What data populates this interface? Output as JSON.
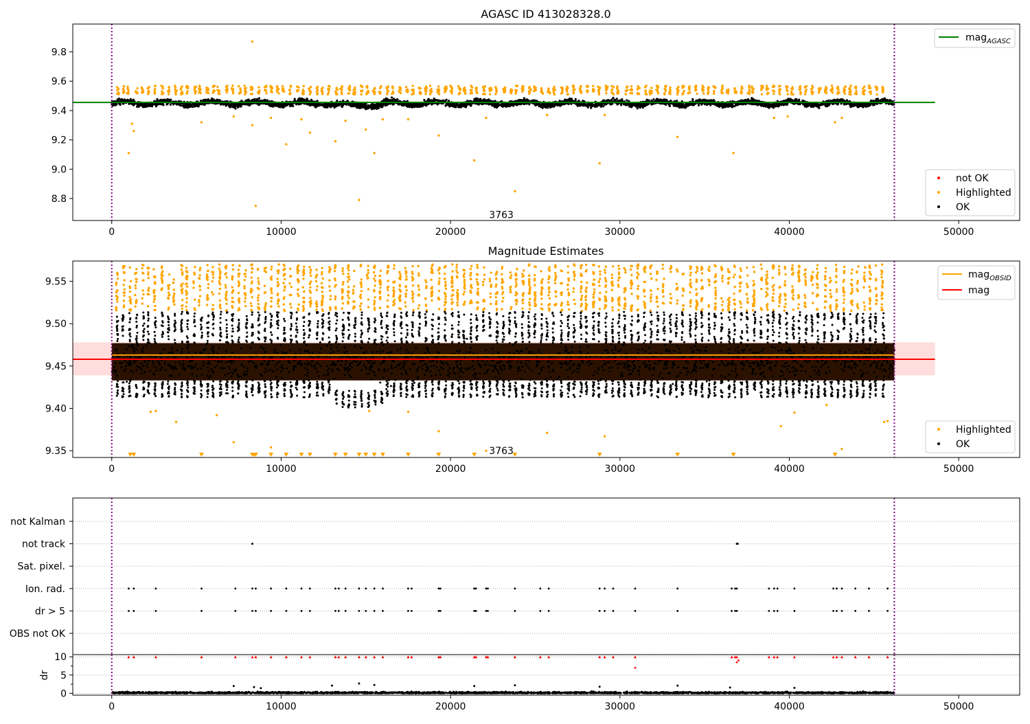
{
  "chart_data": [
    {
      "type": "scatter",
      "title": "AGASC ID 413028328.0",
      "xlim": [
        -2300,
        53600
      ],
      "ylim": [
        8.65,
        9.99
      ],
      "xticks": [
        0,
        10000,
        20000,
        30000,
        40000,
        50000
      ],
      "yticks": [
        8.8,
        9.0,
        9.2,
        9.4,
        9.6,
        9.8
      ],
      "vlines": [
        0,
        46200
      ],
      "hline": {
        "name": "mag_AGASC",
        "value": 9.455,
        "x_range": [
          -2300,
          48600
        ],
        "color": "#008000"
      },
      "annotation": {
        "text": "3763",
        "x": 23000,
        "y": 8.69
      },
      "ok_band": {
        "x_range": [
          0,
          46200
        ],
        "center": 9.45,
        "spread": 0.04
      },
      "highlight_band": {
        "center": 9.54,
        "spread": 0.03
      },
      "highlighted_outliers": [
        [
          1000,
          9.11
        ],
        [
          1200,
          9.31
        ],
        [
          1300,
          9.26
        ],
        [
          5300,
          9.32
        ],
        [
          7200,
          9.36
        ],
        [
          8300,
          9.3
        ],
        [
          8300,
          9.87
        ],
        [
          8500,
          8.75
        ],
        [
          9400,
          9.35
        ],
        [
          10300,
          9.17
        ],
        [
          11200,
          9.34
        ],
        [
          11700,
          9.25
        ],
        [
          13200,
          9.19
        ],
        [
          13800,
          9.33
        ],
        [
          14600,
          8.79
        ],
        [
          15000,
          9.27
        ],
        [
          15500,
          9.11
        ],
        [
          16000,
          9.34
        ],
        [
          17500,
          9.34
        ],
        [
          19300,
          9.23
        ],
        [
          21400,
          9.06
        ],
        [
          22100,
          9.35
        ],
        [
          23800,
          8.85
        ],
        [
          25700,
          9.37
        ],
        [
          28800,
          9.04
        ],
        [
          29100,
          9.37
        ],
        [
          33400,
          9.22
        ],
        [
          36700,
          9.11
        ],
        [
          39100,
          9.35
        ],
        [
          39900,
          9.36
        ],
        [
          42700,
          9.32
        ],
        [
          43100,
          9.35
        ]
      ],
      "legend_top": [
        {
          "label": "mag",
          "sub": "AGASC",
          "color": "#008000"
        }
      ],
      "legend_bottom": [
        {
          "label": "not OK",
          "color": "#ff0000"
        },
        {
          "label": "Highlighted",
          "color": "#ffa500"
        },
        {
          "label": "OK",
          "color": "#000000"
        }
      ]
    },
    {
      "type": "scatter",
      "title": "Magnitude Estimates",
      "xlim": [
        -2300,
        53600
      ],
      "ylim": [
        9.342,
        9.574
      ],
      "xticks": [
        0,
        10000,
        20000,
        30000,
        40000,
        50000
      ],
      "yticks": [
        9.35,
        9.4,
        9.45,
        9.5,
        9.55
      ],
      "vlines": [
        0,
        46200
      ],
      "hline_mag": {
        "name": "mag",
        "value": 9.458,
        "x_range": [
          -2300,
          48600
        ],
        "color": "#ff0000"
      },
      "mag_band": {
        "low": 9.439,
        "high": 9.478,
        "color": "#ffb3b3"
      },
      "hline_obsid": {
        "name": "mag_OBSID",
        "value": 9.463,
        "x_range": [
          0,
          46200
        ],
        "color": "#ffa500"
      },
      "annotation": {
        "text": "3763",
        "x": 23000,
        "y": 9.35
      },
      "ok_band": {
        "x_range": [
          0,
          46200
        ],
        "center": 9.455,
        "spread": 0.022
      },
      "highlight_band": {
        "low": 9.515,
        "high": 9.57
      },
      "lower_triangles_x": [
        1100,
        1300,
        5300,
        8300,
        8400,
        8500,
        9400,
        10300,
        11200,
        11700,
        13200,
        13800,
        14600,
        15000,
        15500,
        16000,
        17500,
        19300,
        21400,
        23800,
        28800,
        33400,
        36700,
        42700
      ],
      "highlighted_outliers": [
        [
          2300,
          9.396
        ],
        [
          2600,
          9.397
        ],
        [
          3800,
          9.384
        ],
        [
          6200,
          9.392
        ],
        [
          7200,
          9.36
        ],
        [
          9400,
          9.354
        ],
        [
          15200,
          9.397
        ],
        [
          17500,
          9.396
        ],
        [
          19300,
          9.373
        ],
        [
          22100,
          9.35
        ],
        [
          25700,
          9.371
        ],
        [
          29100,
          9.367
        ],
        [
          39500,
          9.379
        ],
        [
          40300,
          9.395
        ],
        [
          42200,
          9.404
        ],
        [
          43100,
          9.352
        ],
        [
          45600,
          9.384
        ],
        [
          45800,
          9.385
        ]
      ],
      "legend_top": [
        {
          "label": "mag",
          "sub": "OBSID",
          "color": "#ffa500"
        },
        {
          "label": "mag",
          "sub": "",
          "color": "#ff0000"
        }
      ],
      "legend_bottom": [
        {
          "label": "Highlighted",
          "color": "#ffa500"
        },
        {
          "label": "OK",
          "color": "#000000"
        }
      ]
    },
    {
      "type": "scatter",
      "xlim": [
        -2300,
        53600
      ],
      "xticks": [
        0,
        10000,
        20000,
        30000,
        40000,
        50000
      ],
      "vlines": [
        0,
        46200
      ],
      "flag_categories": [
        "not Kalman",
        "not track",
        "Sat. pixel.",
        "Ion. rad.",
        "dr > 5",
        "OBS not OK"
      ],
      "not_track_x": [
        8300,
        36900,
        36950
      ],
      "flag_x": [
        1000,
        1300,
        2600,
        5300,
        7300,
        8300,
        8500,
        9400,
        10300,
        11200,
        11700,
        13200,
        13400,
        13800,
        14600,
        15000,
        15500,
        16000,
        17500,
        17700,
        19300,
        19400,
        21400,
        21500,
        22100,
        22200,
        23800,
        25300,
        25800,
        28800,
        29100,
        29600,
        30900,
        33400,
        36600,
        36800,
        36900,
        38800,
        39100,
        39300,
        40300,
        42600,
        42800,
        43100,
        43900,
        44700,
        45800
      ],
      "dr_ylabel": "dr",
      "dr_ylim": [
        -0.5,
        10.6
      ],
      "dr_yticks": [
        0,
        5,
        10
      ],
      "dr_clipped_x": [
        1000,
        1300,
        2600,
        5300,
        7300,
        8300,
        8500,
        9400,
        10300,
        11200,
        11700,
        13200,
        13400,
        13800,
        14600,
        15000,
        15500,
        16000,
        17500,
        17700,
        19300,
        19400,
        21400,
        21500,
        22100,
        22200,
        23800,
        25300,
        25800,
        28800,
        29100,
        29600,
        30900,
        36600,
        36800,
        36900,
        38800,
        39100,
        39300,
        40300,
        42600,
        42800,
        43100,
        43900,
        44700,
        45800
      ],
      "dr_extra_red": [
        [
          30900,
          7.0
        ],
        [
          36900,
          8.5
        ],
        [
          37000,
          9.0
        ]
      ],
      "dr_outliers": [
        [
          7200,
          2.0
        ],
        [
          8400,
          1.7
        ],
        [
          8800,
          1.4
        ],
        [
          13000,
          2.1
        ],
        [
          14600,
          2.7
        ],
        [
          15500,
          2.3
        ],
        [
          21400,
          2.0
        ],
        [
          23800,
          2.2
        ],
        [
          28800,
          1.8
        ],
        [
          33400,
          2.1
        ],
        [
          36500,
          1.6
        ],
        [
          40300,
          1.5
        ]
      ]
    }
  ]
}
